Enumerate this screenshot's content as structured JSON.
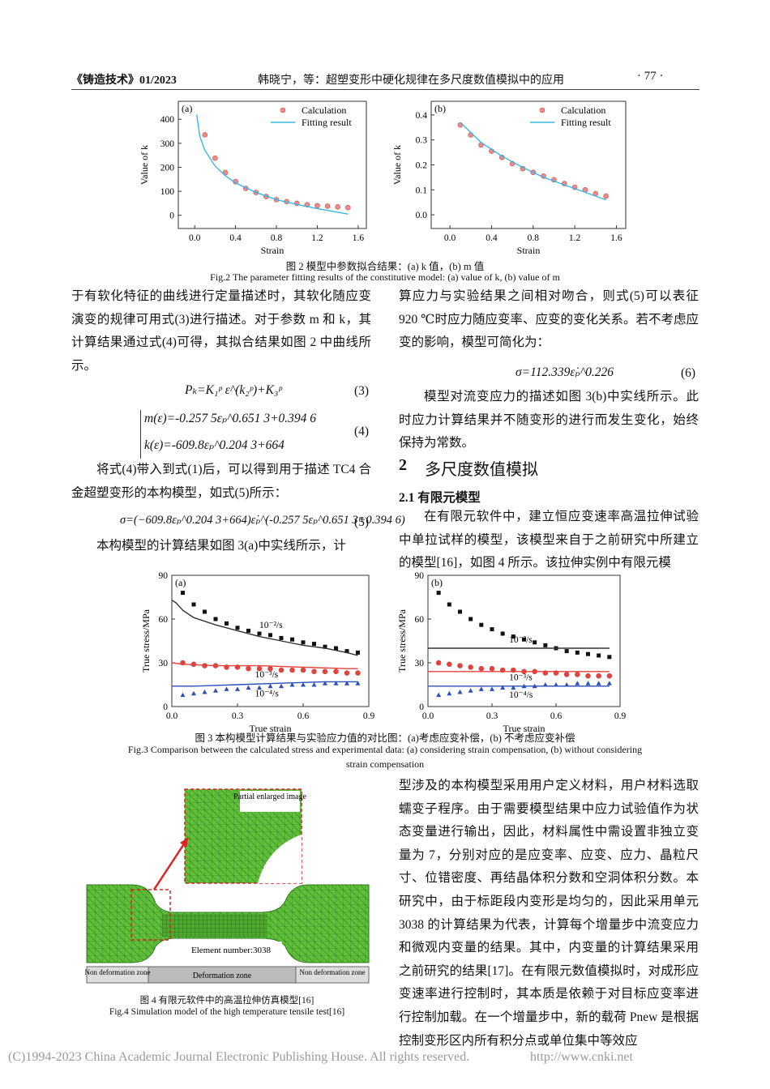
{
  "header": {
    "journal": "《铸造技术》01/2023",
    "running_title": "韩晓宁，等：超塑变形中硬化规律在多尺度数值模拟中的应用",
    "page": "· 77 ·"
  },
  "figure2": {
    "charts": [
      {
        "type": "scatter",
        "panel": "(a)",
        "xlabel": "Strain",
        "ylabel": "Value of k",
        "xlim": [
          -0.16,
          1.68
        ],
        "ylim": [
          -55,
          475
        ],
        "xticks": [
          {
            "value": 0,
            "label": "0.0"
          },
          0.4,
          0.8,
          1.2,
          1.6
        ],
        "yticks": [
          0,
          100,
          200,
          300,
          400
        ],
        "legend": "upper right",
        "series": [
          {
            "name": "Calculation",
            "color": "#f08a8a",
            "marker": "circle",
            "x": [
              0.1,
              0.2,
              0.3,
              0.4,
              0.5,
              0.6,
              0.7,
              0.8,
              0.9,
              1.0,
              1.1,
              1.2,
              1.3,
              1.4,
              1.5
            ],
            "values": [
              335,
              238,
              178,
              140,
              112,
              95,
              78,
              65,
              57,
              50,
              44,
              40,
              38,
              35,
              32
            ]
          },
          {
            "name": "Fitting result",
            "color": "#3ab7e3",
            "marker": "line",
            "x": [
              0.02,
              0.05,
              0.1,
              0.2,
              0.3,
              0.4,
              0.6,
              0.8,
              1.0,
              1.2,
              1.5
            ],
            "values": [
              420,
              330,
              270,
              205,
              165,
              135,
              95,
              65,
              45,
              28,
              5
            ]
          }
        ]
      },
      {
        "type": "scatter",
        "panel": "(b)",
        "xlabel": "Strain",
        "ylabel": "Value of k",
        "xlim": [
          -0.18,
          1.69
        ],
        "ylim": [
          -0.055,
          0.455
        ],
        "xticks": [
          {
            "value": 0,
            "label": "0.0"
          },
          0.4,
          0.8,
          1.2,
          1.6
        ],
        "yticks": [
          {
            "value": 0,
            "label": "0.0"
          },
          0.1,
          0.2,
          0.3,
          0.4
        ],
        "legend": "upper right",
        "series": [
          {
            "name": "Calculation",
            "color": "#f08a8a",
            "marker": "circle",
            "x": [
              0.1,
              0.2,
              0.3,
              0.4,
              0.5,
              0.6,
              0.7,
              0.8,
              0.9,
              1.0,
              1.1,
              1.2,
              1.3,
              1.4,
              1.5
            ],
            "values": [
              0.36,
              0.32,
              0.28,
              0.255,
              0.23,
              0.205,
              0.185,
              0.17,
              0.155,
              0.14,
              0.125,
              0.11,
              0.1,
              0.085,
              0.075
            ]
          },
          {
            "name": "Fitting result",
            "color": "#3ab7e3",
            "marker": "line",
            "x": [
              0.1,
              0.3,
              0.5,
              0.7,
              0.9,
              1.1,
              1.3,
              1.5
            ],
            "values": [
              0.37,
              0.29,
              0.235,
              0.19,
              0.15,
              0.12,
              0.09,
              0.06
            ]
          }
        ]
      }
    ],
    "caption_cn": "图 2  模型中参数拟合结果：(a) k 值，(b) m 值",
    "caption_en": "Fig.2  The parameter fitting results of  the constitutive model: (a) value of  k, (b) value of  m"
  },
  "left_column": {
    "p1": "于有软化特征的曲线进行定量描述时，其软化随应变演变的规律可用式(3)进行描述。对于参数 m 和 k，其计算结果通过式(4)可得，其拟合结果如图 2 中曲线所示。",
    "eq3": {
      "text": "Pₖ=K₁ᵖ ε^(k₂ᵖ)+K₃ᵖ",
      "number": "(3)"
    },
    "eq4": {
      "lines": [
        "m(ε)=-0.257 5εₚ^0.651 3+0.394 6",
        "k(ε)=-609.8εₚ^0.204 3+664"
      ],
      "number": "(4)"
    },
    "p2": "将式(4)带入到式(1)后，可以得到用于描述 TC4 合金超塑变形的本构模型，如式(5)所示：",
    "eq5": {
      "text": "σ=(−609.8εₚ^0.204 3+664)ε̇ₚ^(-0.257 5εₚ^0.651 3+0.394 6)",
      "number": "(5)"
    },
    "p3": "本构模型的计算结果如图 3(a)中实线所示，计"
  },
  "right_column": {
    "p1": "算应力与实验结果之间相对吻合，则式(5)可以表征 920 ℃时应力随应变率、应变的变化关系。若不考虑应变的影响，模型可简化为：",
    "eq6": {
      "text": "σ=112.339ε̇ₚ^0.226",
      "number": "(6)"
    },
    "p2": "模型对流变应力的描述如图 3(b)中实线所示。此时应力计算结果并不随变形的进行而发生变化，始终保持为常数。",
    "section": {
      "number": "2",
      "title": "多尺度数值模拟"
    },
    "subsection": "2.1  有限元模型",
    "p3": "在有限元软件中，建立恒应变速率高温拉伸试验中单拉试样的模型，该模型来自于之前研究中所建立的模型[16]，如图 4 所示。该拉伸实例中有限元模",
    "p4": "型涉及的本构模型采用用户定义材料，用户材料选取蠕变子程序。由于需要模型结果中应力试验值作为状态变量进行输出，因此，材料属性中需设置非独立变量为 7，分别对应的是应变率、应变、应力、晶粒尺寸、位错密度、再结晶体积分数和空洞体积分数。本研究中，由于标距段内变形是均匀的，因此采用单元 3038 的计算结果为代表，计算每个增量步中流变应力和微观内变量的结果。其中，内变量的计算结果采用之前研究的结果[17]。在有限元数值模拟时，对成形应变速率进行控制时，其本质是依赖于对目标应变率进行控制加载。在一个增量步中，新的载荷 Pnew 是根据控制变形区内所有积分点或单位集中等效应"
  },
  "figure3": {
    "charts": [
      {
        "type": "scatter",
        "panel": "(a)",
        "xlabel": "True strain",
        "ylabel": "True stress/MPa",
        "xlim": [
          0,
          0.9
        ],
        "ylim": [
          0,
          90
        ],
        "xticks": [
          {
            "value": 0,
            "label": "0.0"
          },
          0.3,
          0.6,
          0.9
        ],
        "yticks": [
          0,
          30,
          60,
          90
        ],
        "annotations": [
          "10⁻²/s",
          "10⁻³/s",
          "10⁻⁴/s"
        ],
        "series": [
          {
            "color": "#111111",
            "marker": "square",
            "x": [
              0.05,
              0.1,
              0.15,
              0.2,
              0.25,
              0.3,
              0.35,
              0.4,
              0.45,
              0.5,
              0.55,
              0.6,
              0.65,
              0.7,
              0.75,
              0.8,
              0.85
            ],
            "values": [
              78,
              70,
              65,
              60,
              57,
              54,
              52,
              50,
              49,
              47,
              46,
              44,
              43,
              41,
              40,
              38,
              37
            ]
          },
          {
            "color": "#e8413c",
            "marker": "circle",
            "x": [
              0.05,
              0.1,
              0.15,
              0.2,
              0.25,
              0.3,
              0.35,
              0.4,
              0.45,
              0.5,
              0.55,
              0.6,
              0.65,
              0.7,
              0.75,
              0.8,
              0.85
            ],
            "values": [
              30,
              29,
              28,
              28,
              27,
              27,
              26,
              26,
              26,
              25,
              25,
              25,
              24,
              24,
              24,
              23,
              23
            ]
          },
          {
            "color": "#2c4fb8",
            "marker": "triangle",
            "x": [
              0.05,
              0.1,
              0.15,
              0.2,
              0.25,
              0.3,
              0.35,
              0.4,
              0.45,
              0.5,
              0.55,
              0.6,
              0.65,
              0.7,
              0.75,
              0.8,
              0.85
            ],
            "values": [
              8,
              9,
              10,
              11,
              12,
              12,
              13,
              13,
              14,
              14,
              15,
              15,
              15,
              16,
              16,
              16,
              16
            ]
          },
          {
            "color": "#333333",
            "marker": "line",
            "x": [
              0,
              0.02,
              0.05,
              0.1,
              0.2,
              0.3,
              0.4,
              0.5,
              0.6,
              0.7,
              0.8,
              0.85
            ],
            "values": [
              73,
              71,
              66,
              61,
              56,
              52,
              48,
              45,
              42,
              40,
              37,
              35
            ]
          },
          {
            "color": "#e8413c",
            "marker": "line",
            "x": [
              0,
              0.05,
              0.2,
              0.4,
              0.6,
              0.8,
              0.85
            ],
            "values": [
              30,
              29,
              28,
              28,
              27,
              26,
              26
            ]
          },
          {
            "color": "#2c4fb8",
            "marker": "line",
            "x": [
              0,
              0.1,
              0.3,
              0.5,
              0.7,
              0.85
            ],
            "values": [
              14,
              14,
              15,
              16,
              17,
              17
            ]
          }
        ]
      },
      {
        "type": "scatter",
        "panel": "(b)",
        "xlabel": "True strain",
        "ylabel": "True stress/MPa",
        "xlim": [
          0,
          0.9
        ],
        "ylim": [
          0,
          90
        ],
        "xticks": [
          {
            "value": 0,
            "label": "0.0"
          },
          0.3,
          0.6,
          0.9
        ],
        "yticks": [
          0,
          30,
          60,
          90
        ],
        "annotations": [
          "10⁻²/s",
          "10⁻³/s",
          "10⁻⁴/s"
        ],
        "series": [
          {
            "color": "#111111",
            "marker": "square",
            "x": [
              0.05,
              0.1,
              0.15,
              0.2,
              0.25,
              0.3,
              0.35,
              0.4,
              0.45,
              0.5,
              0.55,
              0.6,
              0.65,
              0.7,
              0.75,
              0.8,
              0.85
            ],
            "values": [
              78,
              70,
              65,
              60,
              56,
              53,
              50,
              48,
              46,
              44,
              42,
              40,
              38,
              37,
              36,
              35,
              34
            ]
          },
          {
            "color": "#e8413c",
            "marker": "circle",
            "x": [
              0.05,
              0.1,
              0.15,
              0.2,
              0.25,
              0.3,
              0.35,
              0.4,
              0.45,
              0.5,
              0.55,
              0.6,
              0.65,
              0.7,
              0.75,
              0.8,
              0.85
            ],
            "values": [
              30,
              29,
              28,
              27,
              26,
              26,
              25,
              25,
              24,
              24,
              23,
              23,
              22,
              22,
              21,
              21,
              21
            ]
          },
          {
            "color": "#2c4fb8",
            "marker": "triangle",
            "x": [
              0.05,
              0.1,
              0.15,
              0.2,
              0.25,
              0.3,
              0.35,
              0.4,
              0.45,
              0.5,
              0.55,
              0.6,
              0.65,
              0.7,
              0.75,
              0.8,
              0.85
            ],
            "values": [
              8,
              9,
              10,
              11,
              12,
              12,
              13,
              13,
              14,
              14,
              15,
              15,
              15,
              16,
              16,
              16,
              16
            ]
          },
          {
            "color": "#333333",
            "marker": "line",
            "x": [
              0,
              0.85
            ],
            "values": [
              40,
              40
            ]
          },
          {
            "color": "#e8413c",
            "marker": "line",
            "x": [
              0,
              0.85
            ],
            "values": [
              24,
              24
            ]
          },
          {
            "color": "#2c4fb8",
            "marker": "line",
            "x": [
              0,
              0.85
            ],
            "values": [
              14,
              14
            ]
          }
        ]
      }
    ],
    "caption_cn": "图 3  本构模型计算结果与实验应力值的对比图：(a)考虑应变补偿，(b) 不考虑应变补偿",
    "caption_en": "Fig.3  Comparison between the calculated stress and experimental data: (a) considering strain compensation, (b) without considering",
    "caption_en_2": "strain compensation"
  },
  "figure4": {
    "inset_label": "Partial enlarged image",
    "element_label": "Element number:3038",
    "zones": [
      "Non deformation zone",
      "Deformation zone",
      "Non deformation zone"
    ],
    "caption_cn": "图 4  有限元软件中的高温拉伸仿真模型[16]",
    "caption_en": "Fig.4  Simulation model of the high temperature tensile test[16]"
  },
  "footer": {
    "copyright": "(C)1994-2023 China Academic Journal Electronic Publishing House. All rights reserved.",
    "url": "http://www.cnki.net"
  }
}
